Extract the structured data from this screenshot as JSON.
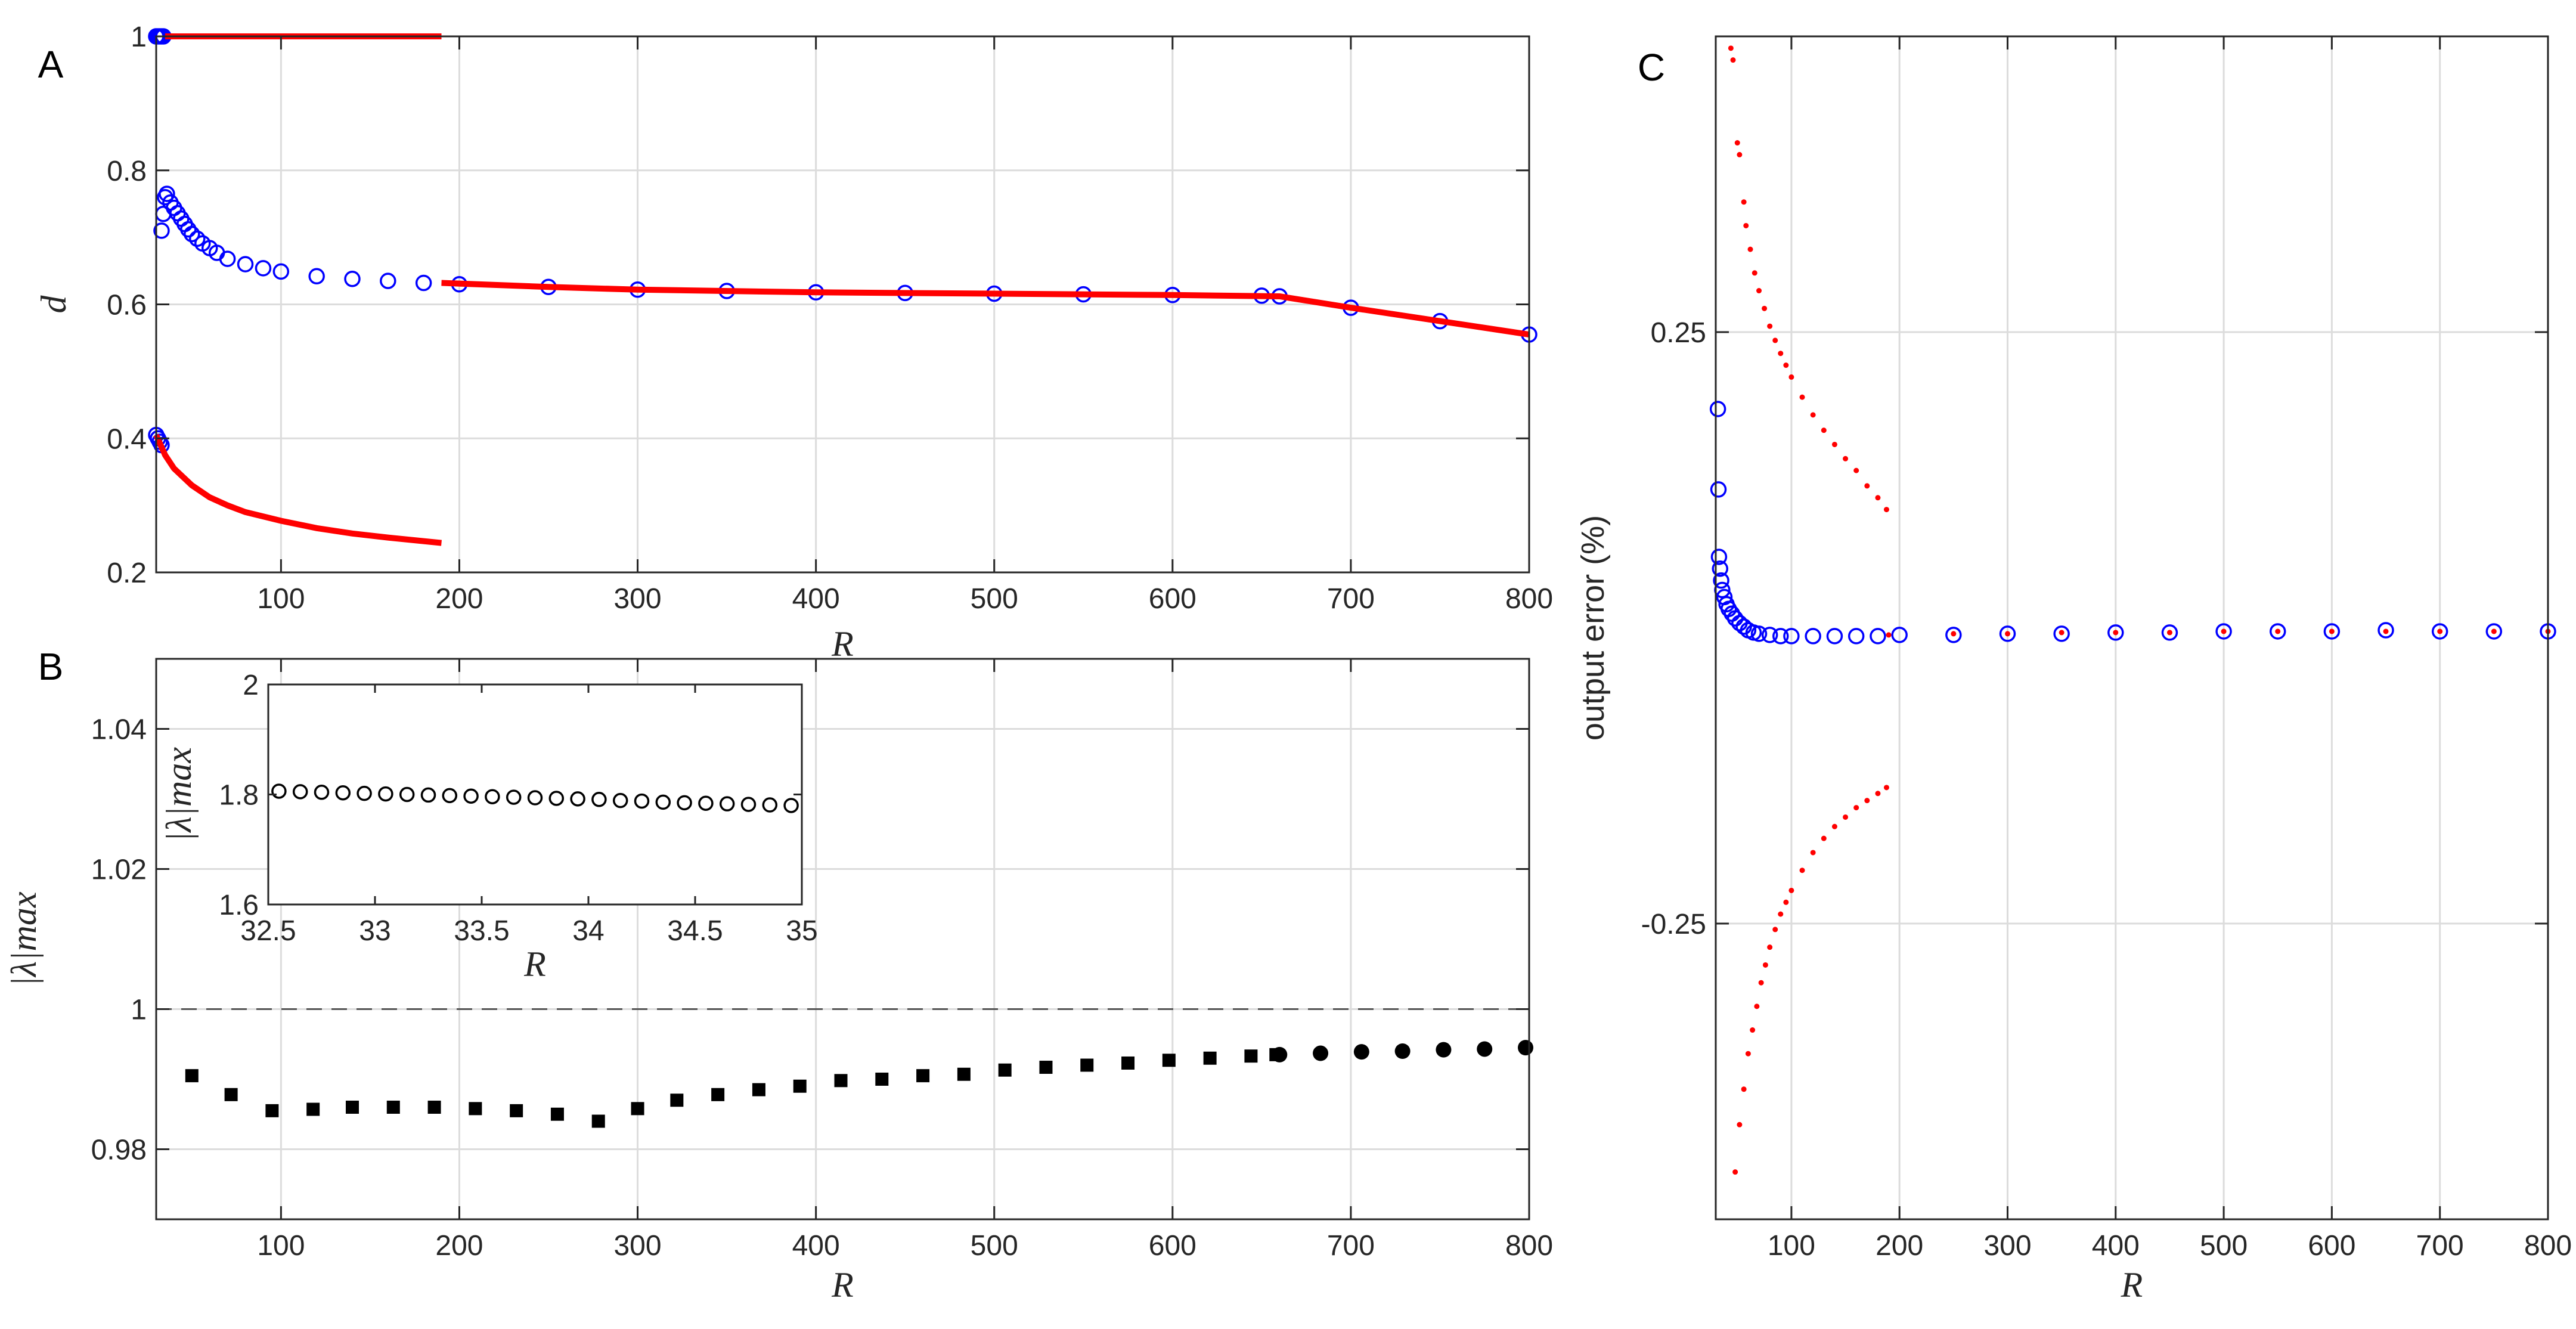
{
  "chart_data": [
    {
      "id": "A",
      "panel_label": "A",
      "type": "scatter",
      "xlabel": "R",
      "ylabel": "d",
      "xlim": [
        30,
        800
      ],
      "ylim": [
        0.2,
        1.0
      ],
      "xticks": [
        100,
        200,
        300,
        400,
        500,
        600,
        700,
        800
      ],
      "yticks": [
        0.2,
        0.4,
        0.6,
        0.8,
        1
      ],
      "ytick_labels": [
        "0.2",
        "0.4",
        "0.6",
        "0.8",
        "1"
      ],
      "grid": true,
      "series": [
        {
          "name": "blue circles upper",
          "color": "#0000ff",
          "marker": "open-circle",
          "points": [
            [
              30,
              1.0
            ],
            [
              31,
              1.0
            ],
            [
              32,
              1.0
            ],
            [
              33,
              1.0
            ],
            [
              34,
              1.0
            ]
          ]
        },
        {
          "name": "blue circles lower",
          "color": "#0000ff",
          "marker": "open-circle",
          "points": [
            [
              30,
              0.405
            ],
            [
              31,
              0.4
            ],
            [
              32,
              0.395
            ],
            [
              33,
              0.39
            ]
          ]
        },
        {
          "name": "blue circles main",
          "color": "#0000ff",
          "marker": "open-circle",
          "points": [
            [
              33,
              0.71
            ],
            [
              34,
              0.735
            ],
            [
              35,
              0.76
            ],
            [
              36,
              0.765
            ],
            [
              38,
              0.752
            ],
            [
              40,
              0.744
            ],
            [
              42,
              0.736
            ],
            [
              44,
              0.728
            ],
            [
              46,
              0.72
            ],
            [
              48,
              0.712
            ],
            [
              50,
              0.705
            ],
            [
              53,
              0.698
            ],
            [
              56,
              0.691
            ],
            [
              60,
              0.684
            ],
            [
              64,
              0.677
            ],
            [
              70,
              0.668
            ],
            [
              80,
              0.66
            ],
            [
              90,
              0.654
            ],
            [
              100,
              0.649
            ],
            [
              120,
              0.642
            ],
            [
              140,
              0.638
            ],
            [
              160,
              0.635
            ],
            [
              180,
              0.632
            ],
            [
              200,
              0.63
            ],
            [
              250,
              0.626
            ],
            [
              300,
              0.622
            ],
            [
              350,
              0.62
            ],
            [
              400,
              0.618
            ],
            [
              450,
              0.617
            ],
            [
              500,
              0.616
            ],
            [
              550,
              0.615
            ],
            [
              600,
              0.614
            ],
            [
              650,
              0.613
            ],
            [
              660,
              0.612
            ],
            [
              700,
              0.595
            ],
            [
              750,
              0.575
            ],
            [
              800,
              0.555
            ]
          ]
        },
        {
          "name": "red line top",
          "color": "#ff0000",
          "marker": "line",
          "points": [
            [
              35,
              1.0
            ],
            [
              190,
              1.0
            ]
          ]
        },
        {
          "name": "red line lower branch",
          "color": "#ff0000",
          "marker": "line",
          "points": [
            [
              30,
              0.405
            ],
            [
              35,
              0.375
            ],
            [
              40,
              0.355
            ],
            [
              50,
              0.33
            ],
            [
              60,
              0.312
            ],
            [
              70,
              0.3
            ],
            [
              80,
              0.29
            ],
            [
              100,
              0.277
            ],
            [
              120,
              0.266
            ],
            [
              140,
              0.258
            ],
            [
              160,
              0.252
            ],
            [
              190,
              0.244
            ]
          ]
        },
        {
          "name": "red line main",
          "color": "#ff0000",
          "marker": "line",
          "points": [
            [
              190,
              0.632
            ],
            [
              250,
              0.626
            ],
            [
              300,
              0.622
            ],
            [
              400,
              0.618
            ],
            [
              500,
              0.616
            ],
            [
              600,
              0.614
            ],
            [
              660,
              0.612
            ],
            [
              700,
              0.595
            ],
            [
              750,
              0.575
            ],
            [
              800,
              0.555
            ]
          ]
        }
      ]
    },
    {
      "id": "B",
      "panel_label": "B",
      "type": "scatter",
      "xlabel": "R",
      "ylabel": "|λ|max",
      "xlim": [
        30,
        800
      ],
      "ylim": [
        0.97,
        1.05
      ],
      "xticks": [
        100,
        200,
        300,
        400,
        500,
        600,
        700,
        800
      ],
      "yticks": [
        0.98,
        1,
        1.02,
        1.04
      ],
      "ytick_labels": [
        "0.98",
        "1",
        "1.02",
        "1.04"
      ],
      "grid": true,
      "reference_line": {
        "y": 1,
        "style": "dashed"
      },
      "series": [
        {
          "name": "squares",
          "color": "#000000",
          "marker": "filled-square",
          "points": [
            [
              50,
              0.9905
            ],
            [
              72,
              0.9878
            ],
            [
              95,
              0.9855
            ],
            [
              118,
              0.9857
            ],
            [
              140,
              0.986
            ],
            [
              163,
              0.986
            ],
            [
              186,
              0.986
            ],
            [
              209,
              0.9858
            ],
            [
              232,
              0.9855
            ],
            [
              255,
              0.985
            ],
            [
              278,
              0.984
            ],
            [
              300,
              0.9858
            ],
            [
              322,
              0.987
            ],
            [
              345,
              0.9878
            ],
            [
              368,
              0.9885
            ],
            [
              391,
              0.989
            ],
            [
              414,
              0.9898
            ],
            [
              437,
              0.99
            ],
            [
              460,
              0.9905
            ],
            [
              483,
              0.9907
            ],
            [
              506,
              0.9913
            ],
            [
              529,
              0.9917
            ],
            [
              552,
              0.992
            ],
            [
              575,
              0.9923
            ],
            [
              598,
              0.9927
            ],
            [
              621,
              0.993
            ],
            [
              644,
              0.9933
            ],
            [
              658,
              0.9935
            ]
          ]
        },
        {
          "name": "circles",
          "color": "#000000",
          "marker": "filled-circle",
          "points": [
            [
              660,
              0.9935
            ],
            [
              683,
              0.9937
            ],
            [
              706,
              0.9939
            ],
            [
              729,
              0.994
            ],
            [
              752,
              0.9942
            ],
            [
              775,
              0.9943
            ],
            [
              798,
              0.9945
            ]
          ]
        }
      ],
      "inset": {
        "type": "scatter",
        "xlabel": "R",
        "ylabel": "|λ|max",
        "xlim": [
          32.5,
          35
        ],
        "ylim": [
          1.6,
          2.0
        ],
        "xticks": [
          32.5,
          33,
          33.5,
          34,
          34.5,
          35
        ],
        "xtick_labels": [
          "32.5",
          "33",
          "33.5",
          "34",
          "34.5",
          "35"
        ],
        "yticks": [
          1.6,
          1.8,
          2
        ],
        "ytick_labels": [
          "1.6",
          "1.8",
          "2"
        ],
        "series": [
          {
            "name": "inset circles",
            "color": "#000000",
            "marker": "open-circle",
            "points": [
              [
                32.55,
                1.806
              ],
              [
                32.65,
                1.805
              ],
              [
                32.75,
                1.804
              ],
              [
                32.85,
                1.803
              ],
              [
                32.95,
                1.802
              ],
              [
                33.05,
                1.801
              ],
              [
                33.15,
                1.8
              ],
              [
                33.25,
                1.799
              ],
              [
                33.35,
                1.798
              ],
              [
                33.45,
                1.797
              ],
              [
                33.55,
                1.796
              ],
              [
                33.65,
                1.795
              ],
              [
                33.75,
                1.794
              ],
              [
                33.85,
                1.793
              ],
              [
                33.95,
                1.792
              ],
              [
                34.05,
                1.791
              ],
              [
                34.15,
                1.789
              ],
              [
                34.25,
                1.788
              ],
              [
                34.35,
                1.786
              ],
              [
                34.45,
                1.785
              ],
              [
                34.55,
                1.784
              ],
              [
                34.65,
                1.783
              ],
              [
                34.75,
                1.782
              ],
              [
                34.85,
                1.781
              ],
              [
                34.95,
                1.78
              ]
            ]
          }
        ]
      }
    },
    {
      "id": "C",
      "panel_label": "C",
      "type": "scatter",
      "xlabel": "R",
      "ylabel": "output error (%)",
      "xlim": [
        30,
        800
      ],
      "ylim": [
        -0.5,
        0.5
      ],
      "xticks": [
        100,
        200,
        300,
        400,
        500,
        600,
        700,
        800
      ],
      "yticks": [
        -0.25,
        0.25
      ],
      "ytick_labels": [
        "-0.25",
        "0.25"
      ],
      "grid": true,
      "series": [
        {
          "name": "blue circles",
          "color": "#0000ff",
          "marker": "open-circle",
          "points": [
            [
              32,
              0.185
            ],
            [
              32.5,
              0.117
            ],
            [
              33,
              0.06
            ],
            [
              34,
              0.05
            ],
            [
              35,
              0.04
            ],
            [
              36,
              0.032
            ],
            [
              38,
              0.026
            ],
            [
              40,
              0.02
            ],
            [
              42,
              0.016
            ],
            [
              45,
              0.012
            ],
            [
              48,
              0.008
            ],
            [
              52,
              0.004
            ],
            [
              56,
              0.001
            ],
            [
              60,
              -0.002
            ],
            [
              65,
              -0.004
            ],
            [
              70,
              -0.005
            ],
            [
              80,
              -0.006
            ],
            [
              90,
              -0.007
            ],
            [
              100,
              -0.007
            ],
            [
              120,
              -0.007
            ],
            [
              140,
              -0.007
            ],
            [
              160,
              -0.007
            ],
            [
              180,
              -0.007
            ],
            [
              200,
              -0.006
            ],
            [
              250,
              -0.006
            ],
            [
              300,
              -0.005
            ],
            [
              350,
              -0.005
            ],
            [
              400,
              -0.004
            ],
            [
              450,
              -0.004
            ],
            [
              500,
              -0.003
            ],
            [
              550,
              -0.003
            ],
            [
              600,
              -0.003
            ],
            [
              650,
              -0.002
            ],
            [
              700,
              -0.003
            ],
            [
              750,
              -0.003
            ],
            [
              800,
              -0.003
            ]
          ]
        },
        {
          "name": "red dots upper",
          "color": "#ff0000",
          "marker": "dot",
          "points": [
            [
              44,
              0.49
            ],
            [
              46,
              0.48
            ],
            [
              50,
              0.41
            ],
            [
              52,
              0.4
            ],
            [
              56,
              0.36
            ],
            [
              58,
              0.34
            ],
            [
              62,
              0.32
            ],
            [
              66,
              0.3
            ],
            [
              70,
              0.285
            ],
            [
              75,
              0.27
            ],
            [
              80,
              0.255
            ],
            [
              85,
              0.243
            ],
            [
              90,
              0.232
            ],
            [
              95,
              0.222
            ],
            [
              100,
              0.212
            ],
            [
              110,
              0.195
            ],
            [
              120,
              0.18
            ],
            [
              130,
              0.167
            ],
            [
              140,
              0.155
            ],
            [
              150,
              0.143
            ],
            [
              160,
              0.133
            ],
            [
              170,
              0.12
            ],
            [
              180,
              0.11
            ],
            [
              188,
              0.1
            ]
          ]
        },
        {
          "name": "red dots lower",
          "color": "#ff0000",
          "marker": "dot",
          "points": [
            [
              48,
              -0.46
            ],
            [
              52,
              -0.42
            ],
            [
              56,
              -0.39
            ],
            [
              60,
              -0.36
            ],
            [
              64,
              -0.34
            ],
            [
              68,
              -0.32
            ],
            [
              72,
              -0.3
            ],
            [
              76,
              -0.285
            ],
            [
              80,
              -0.27
            ],
            [
              85,
              -0.255
            ],
            [
              90,
              -0.242
            ],
            [
              95,
              -0.232
            ],
            [
              100,
              -0.222
            ],
            [
              110,
              -0.205
            ],
            [
              120,
              -0.19
            ],
            [
              130,
              -0.178
            ],
            [
              140,
              -0.168
            ],
            [
              150,
              -0.16
            ],
            [
              160,
              -0.152
            ],
            [
              170,
              -0.146
            ],
            [
              180,
              -0.14
            ],
            [
              188,
              -0.135
            ]
          ]
        },
        {
          "name": "red dots main",
          "color": "#ff0000",
          "marker": "dot",
          "points": [
            [
              190,
              -0.006
            ],
            [
              250,
              -0.005
            ],
            [
              300,
              -0.005
            ],
            [
              350,
              -0.004
            ],
            [
              400,
              -0.004
            ],
            [
              450,
              -0.004
            ],
            [
              500,
              -0.003
            ],
            [
              550,
              -0.003
            ],
            [
              600,
              -0.003
            ],
            [
              650,
              -0.003
            ],
            [
              700,
              -0.003
            ],
            [
              750,
              -0.003
            ],
            [
              800,
              -0.003
            ]
          ]
        }
      ]
    }
  ]
}
